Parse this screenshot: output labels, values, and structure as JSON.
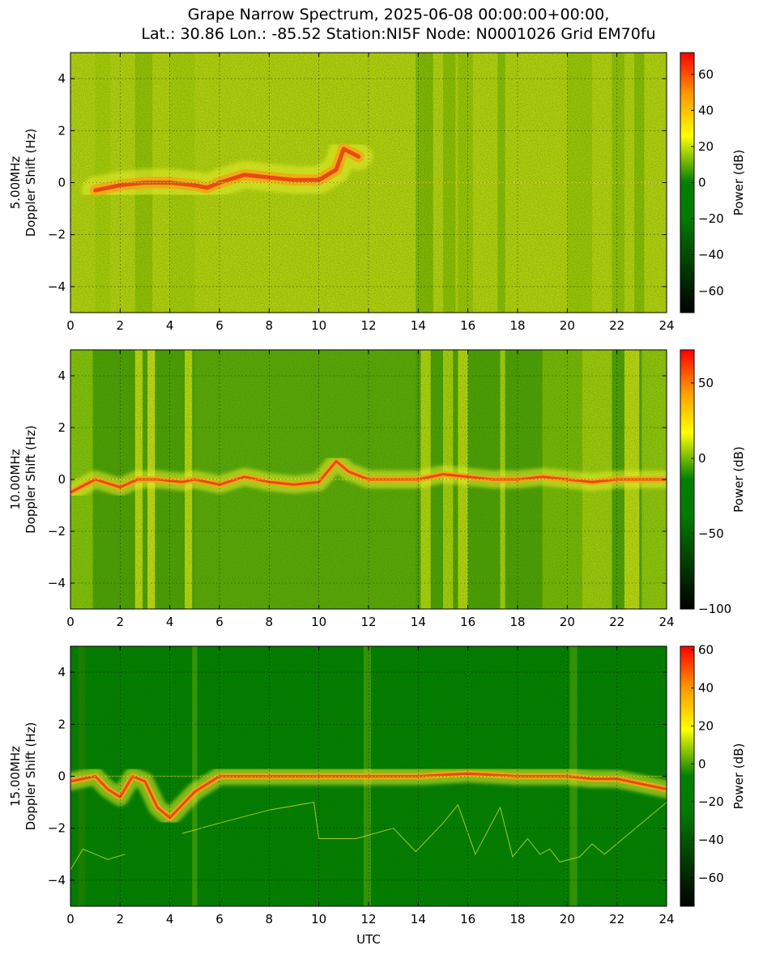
{
  "title": {
    "line1": "Grape Narrow Spectrum, 2025-06-08 00:00:00+00:00,",
    "line2": "Lat.: 30.86 Lon.: -85.52 Station:NI5F Node: N0001026 Grid EM70fu"
  },
  "chart_data": [
    {
      "type": "heatmap",
      "ylabel_line1": "5.00MHz",
      "ylabel_line2": "Doppler Shift (Hz)",
      "xlabel": "",
      "xlim": [
        0,
        24
      ],
      "ylim": [
        -5,
        5
      ],
      "xticks": [
        "0",
        "2",
        "4",
        "6",
        "8",
        "10",
        "12",
        "14",
        "16",
        "18",
        "20",
        "22",
        "24"
      ],
      "yticks": [
        "−4",
        "−2",
        "0",
        "2",
        "4"
      ],
      "grid": true,
      "colorbar": {
        "label": "Power (dB)",
        "range": [
          -72,
          72
        ],
        "ticks": [
          {
            "value": 60,
            "label": "60"
          },
          {
            "value": 40,
            "label": "40"
          },
          {
            "value": 20,
            "label": "20"
          },
          {
            "value": 0,
            "label": "0"
          },
          {
            "value": -20,
            "label": "−20"
          },
          {
            "value": -40,
            "label": "−40"
          },
          {
            "value": -60,
            "label": "−60"
          }
        ]
      },
      "signal_trace": [
        [
          1.0,
          -0.3
        ],
        [
          2.0,
          -0.1
        ],
        [
          3.0,
          0.0
        ],
        [
          4.0,
          0.0
        ],
        [
          5.0,
          -0.1
        ],
        [
          5.5,
          -0.2
        ],
        [
          6.0,
          0.0
        ],
        [
          7.0,
          0.3
        ],
        [
          8.0,
          0.2
        ],
        [
          9.0,
          0.1
        ],
        [
          10.0,
          0.1
        ],
        [
          10.7,
          0.5
        ],
        [
          11.0,
          1.3
        ],
        [
          11.6,
          1.0
        ]
      ]
    },
    {
      "type": "heatmap",
      "ylabel_line1": "10.00MHz",
      "ylabel_line2": "Doppler Shift (Hz)",
      "xlabel": "",
      "xlim": [
        0,
        24
      ],
      "ylim": [
        -5,
        5
      ],
      "xticks": [
        "0",
        "2",
        "4",
        "6",
        "8",
        "10",
        "12",
        "14",
        "16",
        "18",
        "20",
        "22",
        "24"
      ],
      "yticks": [
        "−4",
        "−2",
        "0",
        "2",
        "4"
      ],
      "grid": true,
      "colorbar": {
        "label": "Power (dB)",
        "range": [
          -100,
          72
        ],
        "ticks": [
          {
            "value": 50,
            "label": "50"
          },
          {
            "value": 0,
            "label": "0"
          },
          {
            "value": -50,
            "label": "−50"
          },
          {
            "value": -100,
            "label": "−100"
          }
        ]
      },
      "signal_trace": [
        [
          0.0,
          -0.5
        ],
        [
          1.0,
          0.0
        ],
        [
          2.0,
          -0.3
        ],
        [
          2.7,
          0.0
        ],
        [
          3.5,
          0.0
        ],
        [
          4.5,
          -0.1
        ],
        [
          5.0,
          0.0
        ],
        [
          6.0,
          -0.2
        ],
        [
          7.0,
          0.1
        ],
        [
          8.0,
          -0.1
        ],
        [
          9.0,
          -0.2
        ],
        [
          10.0,
          -0.1
        ],
        [
          10.7,
          0.7
        ],
        [
          11.2,
          0.3
        ],
        [
          12.0,
          0.0
        ],
        [
          14.0,
          0.0
        ],
        [
          15.0,
          0.2
        ],
        [
          16.0,
          0.1
        ],
        [
          17.0,
          0.0
        ],
        [
          18.0,
          0.0
        ],
        [
          19.0,
          0.1
        ],
        [
          20.0,
          0.0
        ],
        [
          21.0,
          -0.1
        ],
        [
          22.0,
          0.0
        ],
        [
          23.0,
          0.0
        ],
        [
          24.0,
          0.0
        ]
      ]
    },
    {
      "type": "heatmap",
      "ylabel_line1": "15.00MHz",
      "ylabel_line2": "Doppler Shift (Hz)",
      "xlabel": "UTC",
      "xlim": [
        0,
        24
      ],
      "ylim": [
        -5,
        5
      ],
      "xticks": [
        "0",
        "2",
        "4",
        "6",
        "8",
        "10",
        "12",
        "14",
        "16",
        "18",
        "20",
        "22",
        "24"
      ],
      "yticks": [
        "−4",
        "−2",
        "0",
        "2",
        "4"
      ],
      "grid": true,
      "colorbar": {
        "label": "Power (dB)",
        "range": [
          -75,
          62
        ],
        "ticks": [
          {
            "value": 60,
            "label": "60"
          },
          {
            "value": 40,
            "label": "40"
          },
          {
            "value": 20,
            "label": "20"
          },
          {
            "value": 0,
            "label": "0"
          },
          {
            "value": -20,
            "label": "−20"
          },
          {
            "value": -40,
            "label": "−40"
          },
          {
            "value": -60,
            "label": "−60"
          }
        ]
      },
      "signal_trace": [
        [
          0.0,
          -0.2
        ],
        [
          1.0,
          0.0
        ],
        [
          1.5,
          -0.5
        ],
        [
          2.0,
          -0.8
        ],
        [
          2.5,
          0.0
        ],
        [
          3.0,
          -0.2
        ],
        [
          3.5,
          -1.2
        ],
        [
          4.0,
          -1.6
        ],
        [
          5.0,
          -0.6
        ],
        [
          6.0,
          0.0
        ],
        [
          8.0,
          0.0
        ],
        [
          10.0,
          0.0
        ],
        [
          12.0,
          0.0
        ],
        [
          14.0,
          0.0
        ],
        [
          16.0,
          0.1
        ],
        [
          18.0,
          0.0
        ],
        [
          20.0,
          0.0
        ],
        [
          21.0,
          -0.1
        ],
        [
          22.0,
          -0.1
        ],
        [
          23.0,
          -0.3
        ],
        [
          24.0,
          -0.5
        ]
      ]
    }
  ]
}
